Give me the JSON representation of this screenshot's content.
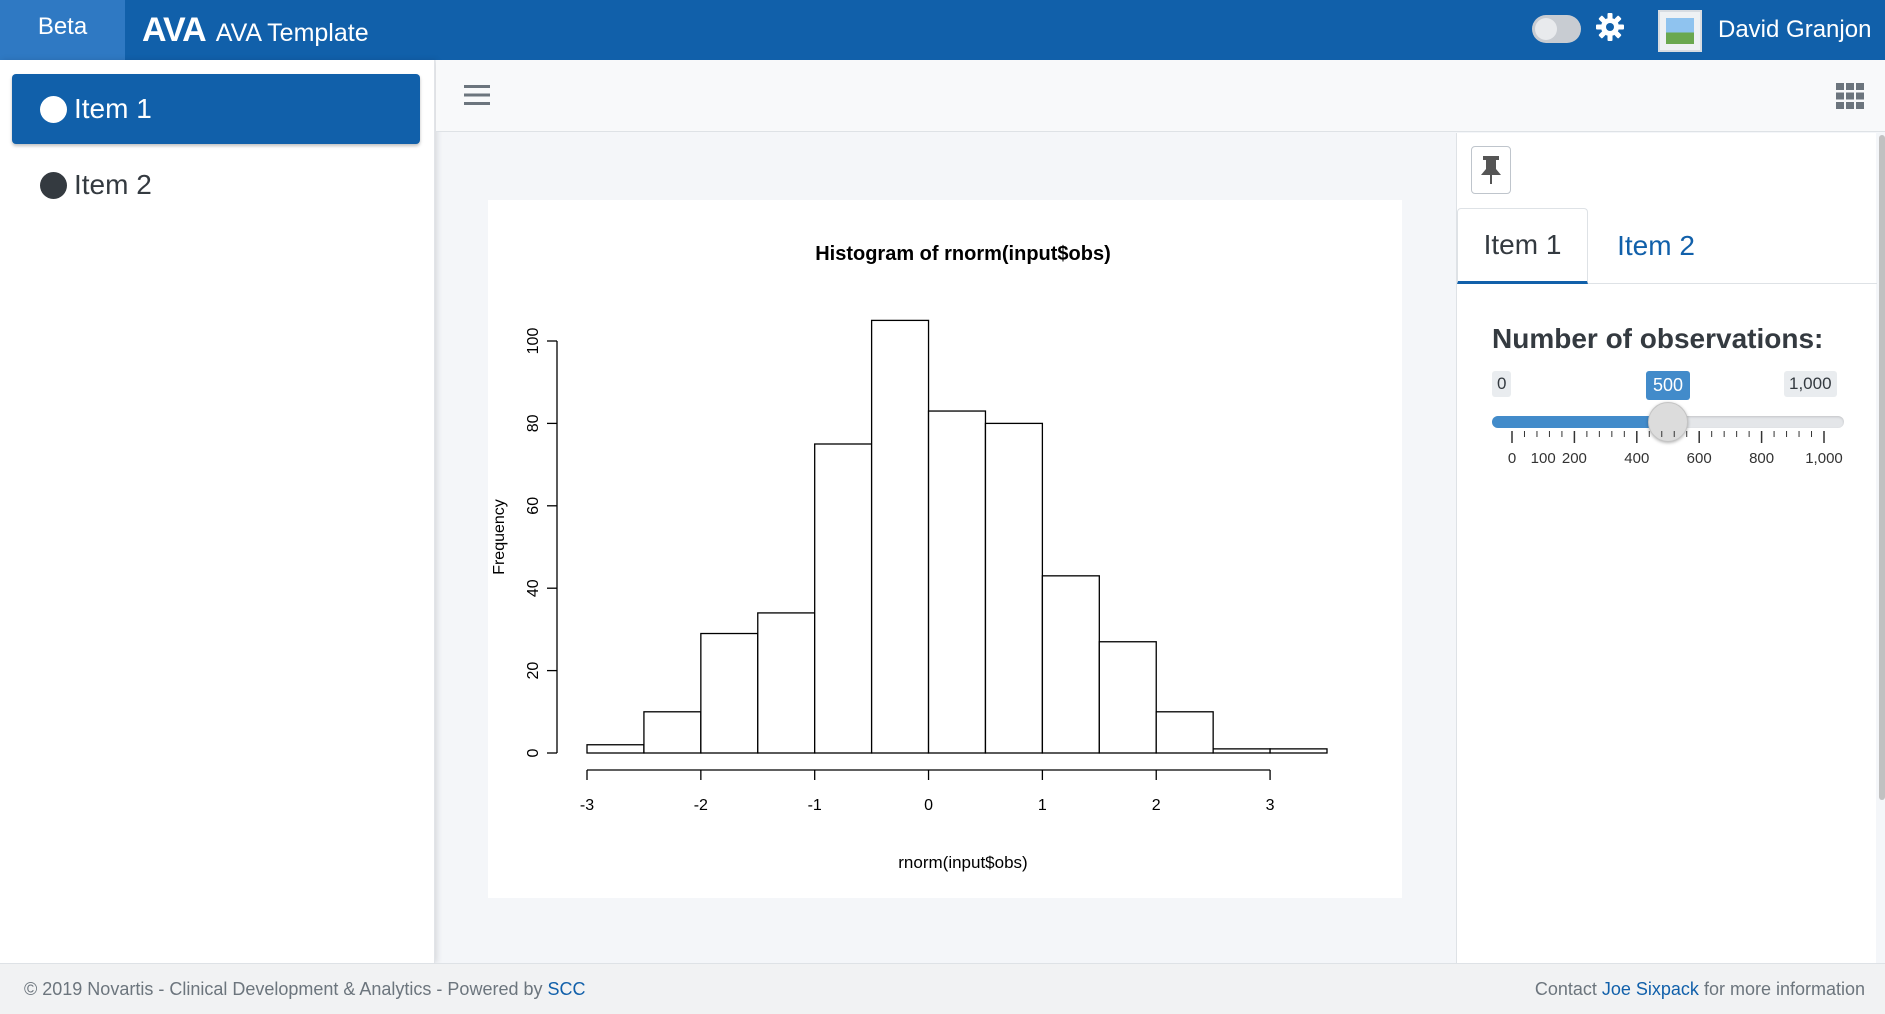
{
  "navbar": {
    "beta_label": "Beta",
    "brand_logo": "AVA",
    "brand_title": "AVA Template",
    "user_name": "David Granjon",
    "brand_color": "#1160aa"
  },
  "sidebar": {
    "items": [
      {
        "label": "Item 1",
        "active": true
      },
      {
        "label": "Item 2",
        "active": false
      }
    ]
  },
  "plot": {
    "chart_data": {
      "type": "histogram",
      "title": "Histogram of rnorm(input$obs)",
      "xlabel": "rnorm(input$obs)",
      "ylabel": "Frequency",
      "bin_edges": [
        -3,
        -2.5,
        -2,
        -1.5,
        -1,
        -0.5,
        0,
        0.5,
        1,
        1.5,
        2,
        2.5,
        3,
        3.5
      ],
      "counts": [
        2,
        10,
        29,
        34,
        75,
        105,
        83,
        80,
        43,
        27,
        10,
        1,
        1
      ],
      "xticks": [
        -3,
        -2,
        -1,
        0,
        1,
        2,
        3
      ],
      "yticks": [
        0,
        20,
        40,
        60,
        80,
        100
      ],
      "xlim": [
        -3,
        3.5
      ],
      "ylim": [
        0,
        105
      ]
    }
  },
  "control": {
    "tabs": [
      {
        "label": "Item 1",
        "active": true
      },
      {
        "label": "Item 2",
        "active": false
      }
    ],
    "obs_label": "Number of observations:",
    "slider": {
      "min_label": "0",
      "max_label": "1,000",
      "value_label": "500",
      "value": 500,
      "min": 0,
      "max": 1000,
      "tick_labels": [
        "0",
        "100",
        "200",
        "400",
        "600",
        "800",
        "1,000"
      ]
    }
  },
  "footer": {
    "left_text": "© 2019 Novartis - Clinical Development & Analytics - Powered by ",
    "left_link": "SCC",
    "right_prefix": "Contact ",
    "right_link": "Joe Sixpack",
    "right_suffix": " for more information"
  }
}
